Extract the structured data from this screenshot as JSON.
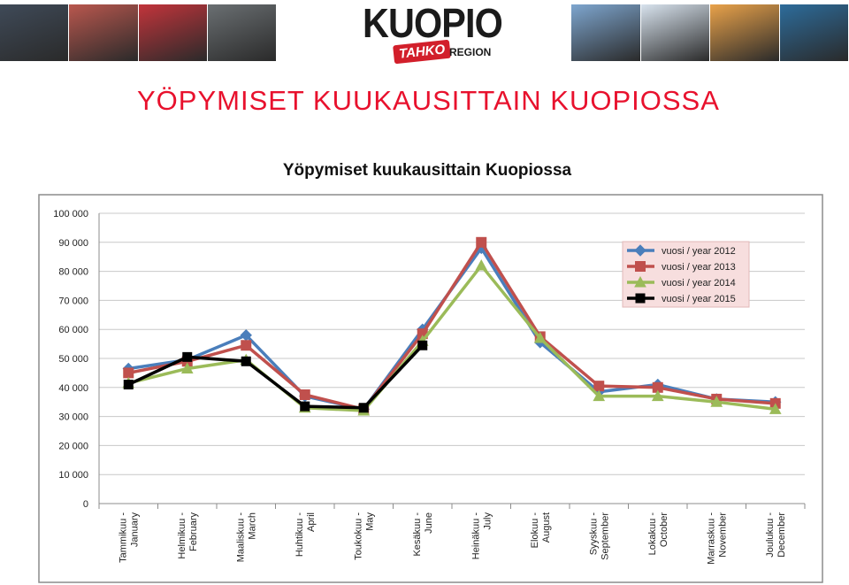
{
  "header": {
    "logo": {
      "word": "KUOPIO",
      "badge": "TAHKO",
      "region": "REGION"
    },
    "title": "YÖPYMISET  KUUKAUSITTAIN  KUOPIOSSA",
    "photos_left": [
      "market-photo",
      "crowd-photo",
      "performers-photo",
      "chef-photo"
    ],
    "photos_right": [
      "winter-lake-photo",
      "snowy-trees-photo",
      "sunset-photo",
      "boat-photo"
    ]
  },
  "colors": {
    "title": "#e8112d",
    "series_2012": "#4a7ebb",
    "series_2013": "#c0504d",
    "series_2014": "#9bbb59",
    "series_2015": "#000000",
    "legend_bg": "#f7dede"
  },
  "chart_data": {
    "type": "line",
    "title": "Yöpymiset kuukausittain Kuopiossa",
    "xlabel": "",
    "ylabel": "",
    "ylim": [
      0,
      100000
    ],
    "yticks": [
      "0",
      "10 000",
      "20 000",
      "30 000",
      "40 000",
      "50 000",
      "60 000",
      "70 000",
      "80 000",
      "90 000",
      "100 000"
    ],
    "grid": true,
    "legend_position": "top-right",
    "categories": [
      [
        "Tammikuu -",
        "January"
      ],
      [
        "Helmikuu -",
        "February"
      ],
      [
        "Maaliskuu -",
        "March"
      ],
      [
        "Huhtikuu -",
        "April"
      ],
      [
        "Toukokuu -",
        "May"
      ],
      [
        "Kesäkuu -",
        "June"
      ],
      [
        "Heinäkuu -",
        "July"
      ],
      [
        "Elokuu -",
        "August"
      ],
      [
        "Syyskuu -",
        "September"
      ],
      [
        "Lokakuu -",
        "October"
      ],
      [
        "Marraskuu -",
        "November"
      ],
      [
        "Joulukuu -",
        "December"
      ]
    ],
    "series": [
      {
        "name": "vuosi / year 2012",
        "marker": "diamond",
        "values": [
          46500,
          49500,
          58000,
          37000,
          32500,
          60000,
          88000,
          55500,
          38500,
          41000,
          36000,
          35000
        ]
      },
      {
        "name": "vuosi / year 2013",
        "marker": "square",
        "values": [
          45000,
          49000,
          54500,
          37500,
          32500,
          58500,
          90000,
          57500,
          40500,
          40000,
          36000,
          34500
        ]
      },
      {
        "name": "vuosi / year 2014",
        "marker": "triangle",
        "values": [
          41500,
          46500,
          49500,
          33000,
          32000,
          56000,
          82000,
          57000,
          37000,
          37000,
          35000,
          32500
        ]
      },
      {
        "name": "vuosi / year 2015",
        "marker": "filled-square",
        "values": [
          41000,
          50500,
          49000,
          33500,
          33000,
          54500,
          null,
          null,
          null,
          null,
          null,
          null
        ]
      }
    ]
  }
}
